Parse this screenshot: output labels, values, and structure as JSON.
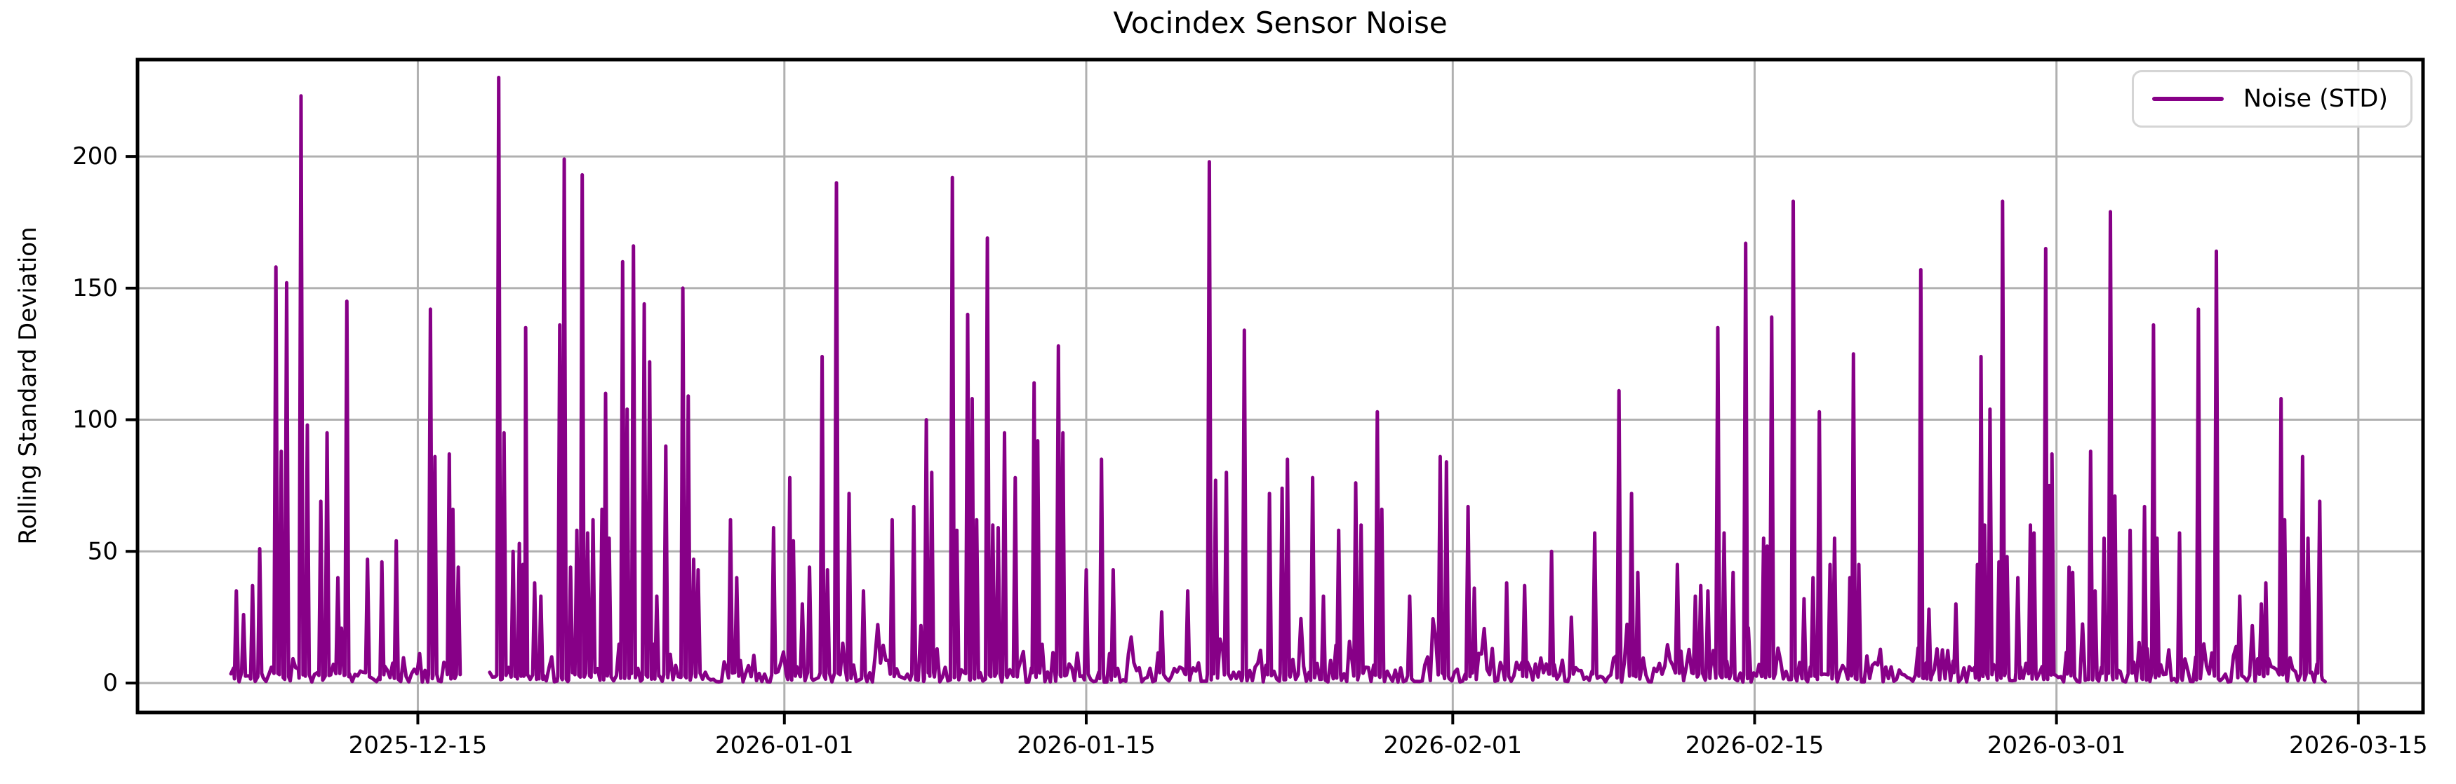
{
  "chart_data": {
    "type": "line",
    "title": "Vocindex Sensor Noise",
    "xlabel": "",
    "ylabel": "Rolling Standard Deviation",
    "grid": true,
    "background_color": "#ffffff",
    "grid_color": "#b0b0b0",
    "spine_color": "#000000",
    "legend": {
      "position": "upper right",
      "entries": [
        {
          "label": "Noise (STD)",
          "color": "#870087"
        }
      ]
    },
    "x_ticks": [
      "2025-12-15",
      "2026-01-01",
      "2026-01-15",
      "2026-02-01",
      "2026-02-15",
      "2026-03-01",
      "2026-03-15"
    ],
    "y_ticks": [
      0,
      50,
      100,
      150,
      200
    ],
    "xlim": [
      "2025-12-02",
      "2026-03-18"
    ],
    "ylim": [
      -11.2,
      236.8
    ],
    "series": [
      {
        "name": "Noise (STD)",
        "color": "#870087",
        "data_start": "2025-12-06T08",
        "data_end": "2026-03-13T12",
        "gaps": [
          [
            "2025-12-17T00",
            "2025-12-18T08"
          ]
        ],
        "baseline": {
          "min": 0.4,
          "typical_max": 12,
          "samples_per_day": 8,
          "seed": 11
        },
        "spikes": [
          [
            "2025-12-06T14",
            35
          ],
          [
            "2025-12-06T22",
            26
          ],
          [
            "2025-12-07T08",
            37
          ],
          [
            "2025-12-07T16",
            51
          ],
          [
            "2025-12-08T10",
            158
          ],
          [
            "2025-12-08T16",
            88
          ],
          [
            "2025-12-08T22",
            152
          ],
          [
            "2025-12-09T14",
            223
          ],
          [
            "2025-12-09T21",
            98
          ],
          [
            "2025-12-10T12",
            69
          ],
          [
            "2025-12-10T19",
            95
          ],
          [
            "2025-12-11T07",
            40
          ],
          [
            "2025-12-11T17",
            145
          ],
          [
            "2025-12-12T16",
            47
          ],
          [
            "2025-12-13T08",
            46
          ],
          [
            "2025-12-14T00",
            54
          ],
          [
            "2025-12-15T14",
            142
          ],
          [
            "2025-12-15T19",
            86
          ],
          [
            "2025-12-16T11",
            87
          ],
          [
            "2025-12-16T15",
            66
          ],
          [
            "2025-12-16T21",
            44
          ],
          [
            "2025-12-18T18",
            230
          ],
          [
            "2025-12-19T00",
            95
          ],
          [
            "2025-12-19T10",
            50
          ],
          [
            "2025-12-19T17",
            53
          ],
          [
            "2025-12-19T21",
            45
          ],
          [
            "2025-12-20T00",
            135
          ],
          [
            "2025-12-20T10",
            38
          ],
          [
            "2025-12-20T17",
            33
          ],
          [
            "2025-12-21T14",
            136
          ],
          [
            "2025-12-21T19",
            199
          ],
          [
            "2025-12-22T02",
            44
          ],
          [
            "2025-12-22T09",
            58
          ],
          [
            "2025-12-22T15",
            193
          ],
          [
            "2025-12-22T21",
            57
          ],
          [
            "2025-12-23T03",
            62
          ],
          [
            "2025-12-23T13",
            66
          ],
          [
            "2025-12-23T17",
            110
          ],
          [
            "2025-12-23T21",
            55
          ],
          [
            "2025-12-24T12",
            160
          ],
          [
            "2025-12-24T17",
            104
          ],
          [
            "2025-12-25T00",
            166
          ],
          [
            "2025-12-25T12",
            144
          ],
          [
            "2025-12-25T18",
            122
          ],
          [
            "2025-12-26T02",
            33
          ],
          [
            "2025-12-26T12",
            90
          ],
          [
            "2025-12-27T07",
            150
          ],
          [
            "2025-12-27T13",
            109
          ],
          [
            "2025-12-27T19",
            47
          ],
          [
            "2025-12-28T00",
            43
          ],
          [
            "2025-12-29T12",
            62
          ],
          [
            "2025-12-29T19",
            40
          ],
          [
            "2025-12-31T12",
            59
          ],
          [
            "2026-01-01T06",
            78
          ],
          [
            "2026-01-01T10",
            54
          ],
          [
            "2026-01-01T20",
            30
          ],
          [
            "2026-01-02T04",
            44
          ],
          [
            "2026-01-02T18",
            124
          ],
          [
            "2026-01-03T00",
            43
          ],
          [
            "2026-01-03T10",
            190
          ],
          [
            "2026-01-04T00",
            72
          ],
          [
            "2026-01-04T16",
            35
          ],
          [
            "2026-01-06T00",
            62
          ],
          [
            "2026-01-07T00",
            67
          ],
          [
            "2026-01-07T14",
            100
          ],
          [
            "2026-01-07T20",
            80
          ],
          [
            "2026-01-08T19",
            192
          ],
          [
            "2026-01-09T00",
            58
          ],
          [
            "2026-01-09T12",
            140
          ],
          [
            "2026-01-09T17",
            108
          ],
          [
            "2026-01-09T22",
            62
          ],
          [
            "2026-01-10T10",
            169
          ],
          [
            "2026-01-10T16",
            60
          ],
          [
            "2026-01-10T22",
            59
          ],
          [
            "2026-01-11T05",
            95
          ],
          [
            "2026-01-11T17",
            78
          ],
          [
            "2026-01-12T14",
            114
          ],
          [
            "2026-01-12T18",
            92
          ],
          [
            "2026-01-13T17",
            128
          ],
          [
            "2026-01-13T22",
            95
          ],
          [
            "2026-01-15T00",
            43
          ],
          [
            "2026-01-15T17",
            85
          ],
          [
            "2026-01-16T06",
            43
          ],
          [
            "2026-01-18T12",
            27
          ],
          [
            "2026-01-19T17",
            35
          ],
          [
            "2026-01-20T17",
            198
          ],
          [
            "2026-01-21T00",
            77
          ],
          [
            "2026-01-21T12",
            80
          ],
          [
            "2026-01-22T08",
            134
          ],
          [
            "2026-01-23T12",
            72
          ],
          [
            "2026-01-24T02",
            74
          ],
          [
            "2026-01-24T08",
            85
          ],
          [
            "2026-01-25T12",
            78
          ],
          [
            "2026-01-26T00",
            33
          ],
          [
            "2026-01-26T17",
            58
          ],
          [
            "2026-01-27T12",
            76
          ],
          [
            "2026-01-27T18",
            60
          ],
          [
            "2026-01-28T12",
            103
          ],
          [
            "2026-01-28T17",
            66
          ],
          [
            "2026-01-30T00",
            33
          ],
          [
            "2026-01-31T10",
            86
          ],
          [
            "2026-01-31T17",
            84
          ],
          [
            "2026-02-01T17",
            67
          ],
          [
            "2026-02-02T00",
            36
          ],
          [
            "2026-02-03T12",
            38
          ],
          [
            "2026-02-04T08",
            37
          ],
          [
            "2026-02-05T14",
            50
          ],
          [
            "2026-02-06T12",
            25
          ],
          [
            "2026-02-07T14",
            57
          ],
          [
            "2026-02-08T17",
            111
          ],
          [
            "2026-02-09T07",
            72
          ],
          [
            "2026-02-09T14",
            42
          ],
          [
            "2026-02-11T10",
            45
          ],
          [
            "2026-02-12T06",
            33
          ],
          [
            "2026-02-12T12",
            37
          ],
          [
            "2026-02-12T20",
            35
          ],
          [
            "2026-02-13T07",
            135
          ],
          [
            "2026-02-13T14",
            57
          ],
          [
            "2026-02-14T00",
            42
          ],
          [
            "2026-02-14T14",
            167
          ],
          [
            "2026-02-15T10",
            55
          ],
          [
            "2026-02-15T14",
            52
          ],
          [
            "2026-02-15T19",
            139
          ],
          [
            "2026-02-16T19",
            183
          ],
          [
            "2026-02-17T07",
            32
          ],
          [
            "2026-02-17T17",
            40
          ],
          [
            "2026-02-18T00",
            103
          ],
          [
            "2026-02-18T12",
            45
          ],
          [
            "2026-02-18T17",
            55
          ],
          [
            "2026-02-19T10",
            40
          ],
          [
            "2026-02-19T14",
            125
          ],
          [
            "2026-02-19T20",
            45
          ],
          [
            "2026-02-22T17",
            157
          ],
          [
            "2026-02-23T02",
            28
          ],
          [
            "2026-02-24T08",
            30
          ],
          [
            "2026-02-25T08",
            45
          ],
          [
            "2026-02-25T12",
            124
          ],
          [
            "2026-02-25T16",
            60
          ],
          [
            "2026-02-25T22",
            104
          ],
          [
            "2026-02-26T08",
            46
          ],
          [
            "2026-02-26T12",
            183
          ],
          [
            "2026-02-26T17",
            48
          ],
          [
            "2026-02-27T05",
            40
          ],
          [
            "2026-02-27T19",
            60
          ],
          [
            "2026-02-27T23",
            57
          ],
          [
            "2026-02-28T12",
            165
          ],
          [
            "2026-02-28T16",
            75
          ],
          [
            "2026-02-28T19",
            87
          ],
          [
            "2026-03-01T14",
            44
          ],
          [
            "2026-03-01T18",
            42
          ],
          [
            "2026-03-02T14",
            88
          ],
          [
            "2026-03-02T19",
            35
          ],
          [
            "2026-03-03T05",
            55
          ],
          [
            "2026-03-03T12",
            179
          ],
          [
            "2026-03-03T17",
            71
          ],
          [
            "2026-03-04T10",
            58
          ],
          [
            "2026-03-05T02",
            67
          ],
          [
            "2026-03-05T12",
            136
          ],
          [
            "2026-03-05T16",
            55
          ],
          [
            "2026-03-06T17",
            57
          ],
          [
            "2026-03-07T14",
            142
          ],
          [
            "2026-03-08T10",
            164
          ],
          [
            "2026-03-09T12",
            33
          ],
          [
            "2026-03-10T12",
            30
          ],
          [
            "2026-03-10T17",
            38
          ],
          [
            "2026-03-11T10",
            108
          ],
          [
            "2026-03-11T14",
            62
          ],
          [
            "2026-03-12T10",
            86
          ],
          [
            "2026-03-12T16",
            55
          ],
          [
            "2026-03-13T05",
            69
          ]
        ]
      }
    ]
  }
}
